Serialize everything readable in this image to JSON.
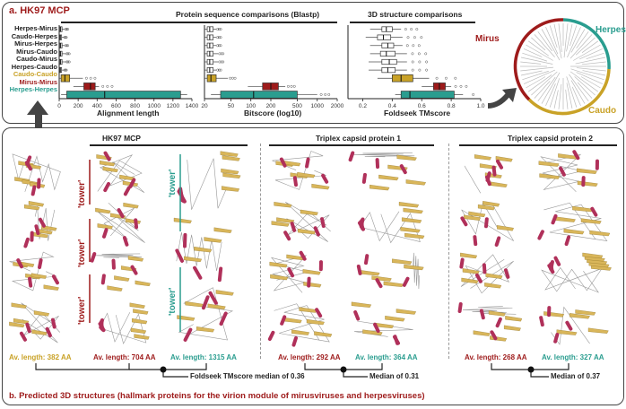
{
  "panel_a": {
    "title": "a. HK97 MCP",
    "protein_section_title": "Protein sequence comparisons (Blastp)",
    "structure_section_title": "3D structure comparisons",
    "row_labels": [
      "Herpes-Mirus",
      "Caudo-Herpes",
      "Mirus-Herpes",
      "Mirus-Caudo",
      "Caudo-Mirus",
      "Herpes-Caudo",
      "Caudo-Caudo",
      "Mirus-Mirus",
      "Herpes-Herpes"
    ],
    "row_label_colors": [
      "#222222",
      "#222222",
      "#222222",
      "#222222",
      "#222222",
      "#222222",
      "#c9a227",
      "#9e1b1b",
      "#2a9d8f"
    ],
    "tree_labels": {
      "herpes": "Herpes",
      "mirus": "Mirus",
      "caudo": "Caudo"
    }
  },
  "chart_data": [
    {
      "type": "box",
      "xlabel": "Alignment length",
      "xticks": [
        "0",
        "200",
        "400",
        "600",
        "800",
        "1000",
        "1200",
        "1400"
      ],
      "xlim": [
        0,
        1400
      ],
      "categories": [
        "Herpes-Mirus",
        "Caudo-Herpes",
        "Mirus-Herpes",
        "Mirus-Caudo",
        "Caudo-Mirus",
        "Herpes-Caudo",
        "Caudo-Caudo",
        "Mirus-Mirus",
        "Herpes-Herpes"
      ],
      "boxes": [
        {
          "q1": 5,
          "median": 15,
          "q3": 30,
          "min": 0,
          "max": 60,
          "color": "#ffffff"
        },
        {
          "q1": 5,
          "median": 12,
          "q3": 25,
          "min": 0,
          "max": 50,
          "color": "#ffffff"
        },
        {
          "q1": 5,
          "median": 15,
          "q3": 30,
          "min": 0,
          "max": 60,
          "color": "#ffffff"
        },
        {
          "q1": 5,
          "median": 15,
          "q3": 30,
          "min": 0,
          "max": 70,
          "color": "#ffffff"
        },
        {
          "q1": 5,
          "median": 15,
          "q3": 30,
          "min": 0,
          "max": 70,
          "color": "#ffffff"
        },
        {
          "q1": 5,
          "median": 12,
          "q3": 25,
          "min": 0,
          "max": 50,
          "color": "#ffffff"
        },
        {
          "q1": 20,
          "median": 60,
          "q3": 110,
          "min": 0,
          "max": 250,
          "color": "#c9a227"
        },
        {
          "q1": 260,
          "median": 330,
          "q3": 380,
          "min": 150,
          "max": 420,
          "color": "#9e1b1b"
        },
        {
          "q1": 80,
          "median": 480,
          "q3": 1280,
          "min": 20,
          "max": 1350,
          "color": "#2a9d8f"
        }
      ]
    },
    {
      "type": "box",
      "xlabel": "Bitscore (log10)",
      "xticks": [
        "20",
        "50",
        "100",
        "200",
        "500",
        "1000",
        "2000"
      ],
      "xlim": [
        20,
        2000
      ],
      "categories": [
        "Herpes-Mirus",
        "Caudo-Herpes",
        "Mirus-Herpes",
        "Mirus-Caudo",
        "Caudo-Mirus",
        "Herpes-Caudo",
        "Caudo-Caudo",
        "Mirus-Mirus",
        "Herpes-Herpes"
      ],
      "boxes": [
        {
          "q1": 22,
          "median": 24,
          "q3": 27,
          "min": 20,
          "max": 30,
          "color": "#ffffff"
        },
        {
          "q1": 22,
          "median": 24,
          "q3": 27,
          "min": 20,
          "max": 30,
          "color": "#ffffff"
        },
        {
          "q1": 22,
          "median": 24,
          "q3": 27,
          "min": 20,
          "max": 30,
          "color": "#ffffff"
        },
        {
          "q1": 22,
          "median": 24,
          "q3": 27,
          "min": 20,
          "max": 32,
          "color": "#ffffff"
        },
        {
          "q1": 22,
          "median": 24,
          "q3": 27,
          "min": 20,
          "max": 32,
          "color": "#ffffff"
        },
        {
          "q1": 22,
          "median": 24,
          "q3": 27,
          "min": 20,
          "max": 30,
          "color": "#ffffff"
        },
        {
          "q1": 22,
          "median": 25,
          "q3": 30,
          "min": 20,
          "max": 45,
          "color": "#c9a227"
        },
        {
          "q1": 150,
          "median": 200,
          "q3": 260,
          "min": 90,
          "max": 330,
          "color": "#9e1b1b"
        },
        {
          "q1": 35,
          "median": 110,
          "q3": 500,
          "min": 25,
          "max": 1000,
          "color": "#2a9d8f"
        }
      ]
    },
    {
      "type": "box",
      "xlabel": "Foldseek TMscore",
      "xticks": [
        "0.2",
        "0.4",
        "0.6",
        "0.8",
        "1.0"
      ],
      "xlim": [
        0.1,
        1.0
      ],
      "categories": [
        "Herpes-Mirus",
        "Caudo-Herpes",
        "Mirus-Herpes",
        "Mirus-Caudo",
        "Caudo-Mirus",
        "Herpes-Caudo",
        "Caudo-Caudo",
        "Mirus-Mirus",
        "Herpes-Herpes"
      ],
      "boxes": [
        {
          "q1": 0.33,
          "median": 0.36,
          "q3": 0.4,
          "min": 0.25,
          "max": 0.46,
          "color": "#ffffff"
        },
        {
          "q1": 0.3,
          "median": 0.34,
          "q3": 0.39,
          "min": 0.22,
          "max": 0.47,
          "color": "#ffffff"
        },
        {
          "q1": 0.33,
          "median": 0.37,
          "q3": 0.41,
          "min": 0.25,
          "max": 0.47,
          "color": "#ffffff"
        },
        {
          "q1": 0.32,
          "median": 0.36,
          "q3": 0.42,
          "min": 0.25,
          "max": 0.5,
          "color": "#ffffff"
        },
        {
          "q1": 0.33,
          "median": 0.38,
          "q3": 0.43,
          "min": 0.24,
          "max": 0.5,
          "color": "#ffffff"
        },
        {
          "q1": 0.33,
          "median": 0.37,
          "q3": 0.42,
          "min": 0.24,
          "max": 0.5,
          "color": "#ffffff"
        },
        {
          "q1": 0.4,
          "median": 0.46,
          "q3": 0.54,
          "min": 0.3,
          "max": 0.65,
          "color": "#c9a227"
        },
        {
          "q1": 0.68,
          "median": 0.72,
          "q3": 0.76,
          "min": 0.6,
          "max": 0.8,
          "color": "#9e1b1b"
        },
        {
          "q1": 0.46,
          "median": 0.52,
          "q3": 0.82,
          "min": 0.42,
          "max": 0.88,
          "color": "#2a9d8f"
        }
      ]
    }
  ],
  "panel_b": {
    "title": "b. Predicted 3D structures (hallmark proteins for the virion module of mirusviruses and herpesviruses)",
    "groups": [
      {
        "name": "HK97 MCP",
        "lengths": [
          {
            "text": "Av. length: 382 AA",
            "color": "#c9a227"
          },
          {
            "text": "Av. length: 704 AA",
            "color": "#9e1b1b"
          },
          {
            "text": "Av. length: 1315 AA",
            "color": "#2a9d8f"
          }
        ],
        "note": "Foldseek TMscore median of 0.36"
      },
      {
        "name": "Triplex capsid protein 1",
        "lengths": [
          {
            "text": "Av. length: 292 AA",
            "color": "#9e1b1b"
          },
          {
            "text": "Av. length: 364 AA",
            "color": "#2a9d8f"
          }
        ],
        "note": "Median of 0.31"
      },
      {
        "name": "Triplex capsid protein 2",
        "lengths": [
          {
            "text": "Av. length: 268 AA",
            "color": "#9e1b1b"
          },
          {
            "text": "Av. length: 327 AA",
            "color": "#2a9d8f"
          }
        ],
        "note": "Median of 0.37"
      }
    ],
    "tower_label": "'tower'"
  },
  "colors": {
    "caudo": "#c9a227",
    "mirus": "#9e1b1b",
    "herpes": "#2a9d8f",
    "helix": "#b0305a",
    "sheet": "#d9b65a"
  }
}
